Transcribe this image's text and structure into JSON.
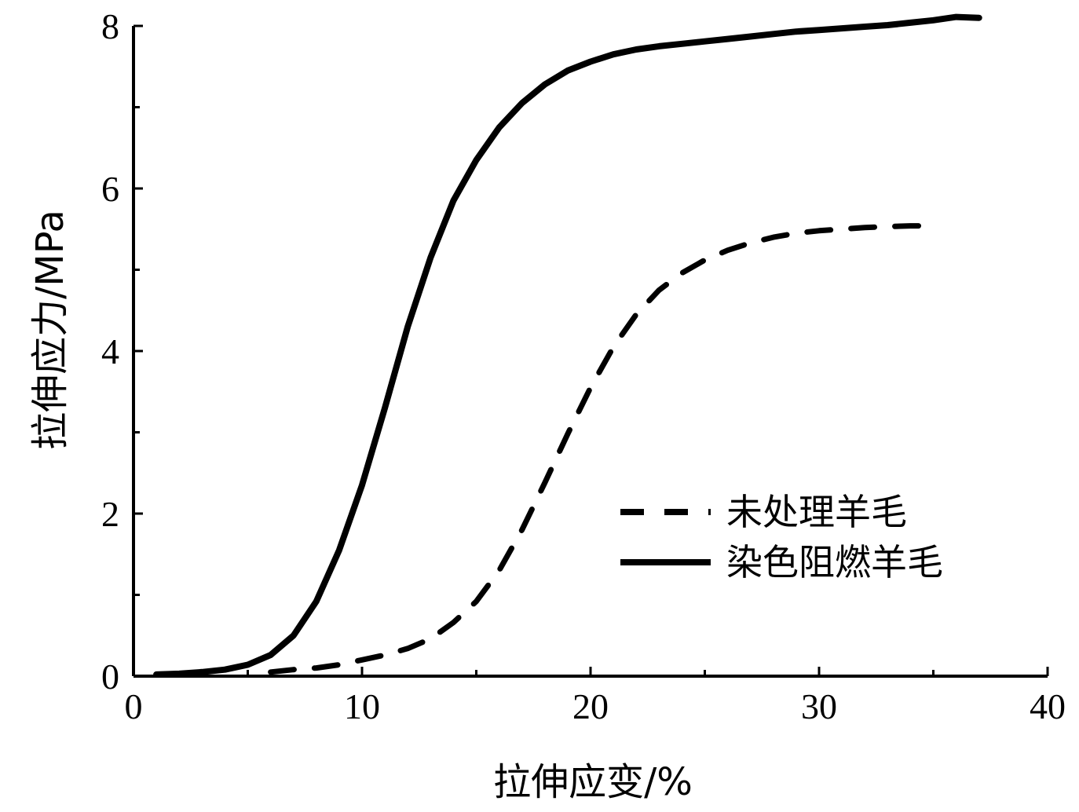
{
  "chart_data": {
    "type": "line",
    "title": "",
    "xlabel": "拉伸应变/%",
    "ylabel": "拉伸应力/MPa",
    "xlim": [
      0,
      40
    ],
    "ylim": [
      0,
      8
    ],
    "x_ticks": [
      "0",
      "10",
      "20",
      "30",
      "40"
    ],
    "y_ticks": [
      "0",
      "2",
      "4",
      "6",
      "8"
    ],
    "grid": false,
    "legend_position": "center-right",
    "series": [
      {
        "name": "未处理羊毛",
        "style": "dashed",
        "color": "#000000",
        "points": [
          [
            6,
            0.05
          ],
          [
            7,
            0.08
          ],
          [
            8,
            0.1
          ],
          [
            9,
            0.14
          ],
          [
            10,
            0.2
          ],
          [
            11,
            0.26
          ],
          [
            12,
            0.34
          ],
          [
            13,
            0.46
          ],
          [
            14,
            0.66
          ],
          [
            15,
            0.92
          ],
          [
            16,
            1.3
          ],
          [
            17,
            1.8
          ],
          [
            18,
            2.38
          ],
          [
            19,
            2.98
          ],
          [
            20,
            3.55
          ],
          [
            21,
            4.05
          ],
          [
            22,
            4.45
          ],
          [
            23,
            4.75
          ],
          [
            24,
            4.96
          ],
          [
            25,
            5.12
          ],
          [
            26,
            5.24
          ],
          [
            27,
            5.33
          ],
          [
            28,
            5.4
          ],
          [
            29,
            5.45
          ],
          [
            30,
            5.48
          ],
          [
            31,
            5.5
          ],
          [
            32,
            5.52
          ],
          [
            33,
            5.53
          ],
          [
            34,
            5.54
          ],
          [
            34.8,
            5.54
          ]
        ]
      },
      {
        "name": "染色阻燃羊毛",
        "style": "solid",
        "color": "#000000",
        "points": [
          [
            1,
            0.02
          ],
          [
            2,
            0.03
          ],
          [
            3,
            0.05
          ],
          [
            4,
            0.08
          ],
          [
            5,
            0.14
          ],
          [
            6,
            0.26
          ],
          [
            7,
            0.5
          ],
          [
            8,
            0.92
          ],
          [
            9,
            1.55
          ],
          [
            10,
            2.35
          ],
          [
            11,
            3.3
          ],
          [
            12,
            4.3
          ],
          [
            13,
            5.15
          ],
          [
            14,
            5.85
          ],
          [
            15,
            6.35
          ],
          [
            16,
            6.75
          ],
          [
            17,
            7.05
          ],
          [
            18,
            7.28
          ],
          [
            19,
            7.45
          ],
          [
            20,
            7.56
          ],
          [
            21,
            7.65
          ],
          [
            22,
            7.71
          ],
          [
            23,
            7.75
          ],
          [
            24,
            7.78
          ],
          [
            25,
            7.81
          ],
          [
            26,
            7.84
          ],
          [
            27,
            7.87
          ],
          [
            28,
            7.9
          ],
          [
            29,
            7.93
          ],
          [
            30,
            7.95
          ],
          [
            31,
            7.97
          ],
          [
            32,
            7.99
          ],
          [
            33,
            8.01
          ],
          [
            34,
            8.04
          ],
          [
            35,
            8.07
          ],
          [
            36,
            8.11
          ],
          [
            37,
            8.1
          ]
        ]
      }
    ]
  }
}
